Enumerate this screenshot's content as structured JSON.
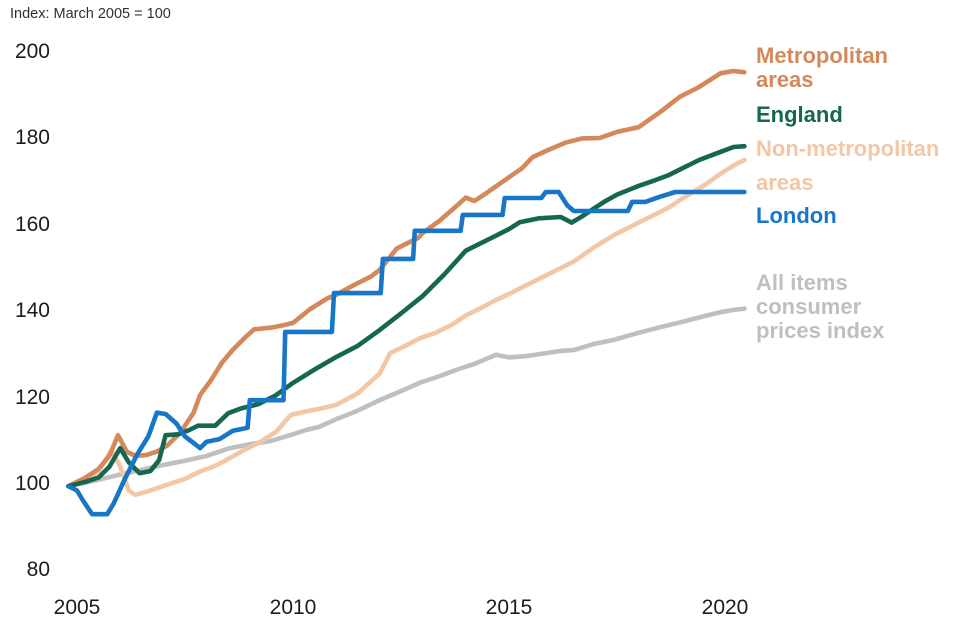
{
  "page": {
    "title": "Index: March 2005 = 100"
  },
  "chart_data": {
    "type": "line",
    "title": "Index: March 2005 = 100",
    "xlabel": "",
    "ylabel": "Index (March 2005 = 100)",
    "x_ticks": [
      2005,
      2010,
      2015,
      2020
    ],
    "y_ticks": [
      80,
      100,
      120,
      140,
      160,
      180,
      200
    ],
    "x_range": [
      2004.8,
      2021.4
    ],
    "y_range": [
      80,
      200
    ],
    "grid": "off",
    "legend_position": "right-of-line-ends",
    "series": [
      {
        "name": "All items consumer prices index",
        "color": "#bfbfbf",
        "label_lines": [
          "All items",
          "consumer",
          "prices index"
        ],
        "points": [
          [
            2004.8,
            99.5
          ],
          [
            2005.5,
            101
          ],
          [
            2006.0,
            102.2
          ],
          [
            2006.5,
            103.3
          ],
          [
            2007.0,
            104.4
          ],
          [
            2007.5,
            105.4
          ],
          [
            2008.0,
            106.5
          ],
          [
            2008.5,
            108.2
          ],
          [
            2009.0,
            109.2
          ],
          [
            2009.5,
            110.0
          ],
          [
            2010.0,
            111.5
          ],
          [
            2010.3,
            112.5
          ],
          [
            2010.6,
            113.2
          ],
          [
            2011.0,
            115.0
          ],
          [
            2011.5,
            117.0
          ],
          [
            2012.0,
            119.4
          ],
          [
            2012.5,
            121.5
          ],
          [
            2012.95,
            123.5
          ],
          [
            2013.4,
            125.0
          ],
          [
            2013.8,
            126.5
          ],
          [
            2014.2,
            127.8
          ],
          [
            2014.7,
            129.9
          ],
          [
            2015.0,
            129.3
          ],
          [
            2015.4,
            129.6
          ],
          [
            2015.8,
            130.2
          ],
          [
            2016.2,
            130.8
          ],
          [
            2016.5,
            131.0
          ],
          [
            2017.0,
            132.5
          ],
          [
            2017.4,
            133.3
          ],
          [
            2018.0,
            135.0
          ],
          [
            2018.5,
            136.3
          ],
          [
            2019.0,
            137.5
          ],
          [
            2019.5,
            138.8
          ],
          [
            2019.9,
            139.8
          ],
          [
            2020.2,
            140.3
          ],
          [
            2020.45,
            140.6
          ]
        ]
      },
      {
        "name": "Non-metropolitan areas",
        "color": "#f3c6a4",
        "label_lines": [
          "Non-metropolitan",
          "areas"
        ],
        "points": [
          [
            2004.8,
            99.5
          ],
          [
            2005.2,
            101.0
          ],
          [
            2005.5,
            103.0
          ],
          [
            2005.8,
            107.9
          ],
          [
            2006.0,
            104.0
          ],
          [
            2006.2,
            98.5
          ],
          [
            2006.35,
            97.5
          ],
          [
            2006.6,
            98.2
          ],
          [
            2006.9,
            99.2
          ],
          [
            2007.2,
            100.2
          ],
          [
            2007.5,
            101.2
          ],
          [
            2007.85,
            102.9
          ],
          [
            2008.2,
            104.2
          ],
          [
            2008.45,
            105.5
          ],
          [
            2008.8,
            107.5
          ],
          [
            2009.2,
            109.5
          ],
          [
            2009.6,
            112.0
          ],
          [
            2009.95,
            116.0
          ],
          [
            2010.3,
            116.8
          ],
          [
            2010.7,
            117.6
          ],
          [
            2011.0,
            118.3
          ],
          [
            2011.5,
            121.0
          ],
          [
            2012.0,
            125.5
          ],
          [
            2012.25,
            130.3
          ],
          [
            2012.6,
            132.0
          ],
          [
            2012.95,
            133.8
          ],
          [
            2013.3,
            135.0
          ],
          [
            2013.7,
            137.0
          ],
          [
            2014.0,
            139.0
          ],
          [
            2014.4,
            141.0
          ],
          [
            2014.7,
            142.6
          ],
          [
            2015.0,
            144.0
          ],
          [
            2015.5,
            146.5
          ],
          [
            2016.0,
            149.0
          ],
          [
            2016.5,
            151.5
          ],
          [
            2017.0,
            155.0
          ],
          [
            2017.5,
            158.0
          ],
          [
            2018.0,
            160.5
          ],
          [
            2018.4,
            162.5
          ],
          [
            2018.7,
            164.0
          ],
          [
            2019.0,
            166.0
          ],
          [
            2019.5,
            169.0
          ],
          [
            2020.0,
            172.5
          ],
          [
            2020.3,
            174.3
          ],
          [
            2020.45,
            175.0
          ]
        ]
      },
      {
        "name": "Metropolitan areas",
        "color": "#d5885a",
        "label_lines": [
          "Metropolitan",
          "areas"
        ],
        "points": [
          [
            2004.8,
            99.5
          ],
          [
            2005.2,
            101.5
          ],
          [
            2005.5,
            103.5
          ],
          [
            2005.75,
            106.5
          ],
          [
            2005.95,
            111.3
          ],
          [
            2006.15,
            107.5
          ],
          [
            2006.35,
            106.5
          ],
          [
            2006.6,
            106.7
          ],
          [
            2006.85,
            107.5
          ],
          [
            2007.1,
            109.0
          ],
          [
            2007.4,
            112.0
          ],
          [
            2007.7,
            116.5
          ],
          [
            2007.85,
            120.6
          ],
          [
            2008.1,
            124.0
          ],
          [
            2008.35,
            128.0
          ],
          [
            2008.6,
            131.0
          ],
          [
            2008.9,
            134.0
          ],
          [
            2009.1,
            135.8
          ],
          [
            2009.5,
            136.2
          ],
          [
            2009.8,
            136.8
          ],
          [
            2010.0,
            137.3
          ],
          [
            2010.4,
            140.5
          ],
          [
            2010.8,
            143.0
          ],
          [
            2011.0,
            143.8
          ],
          [
            2011.4,
            146.0
          ],
          [
            2011.8,
            148.0
          ],
          [
            2012.0,
            149.5
          ],
          [
            2012.2,
            152.0
          ],
          [
            2012.4,
            154.5
          ],
          [
            2012.6,
            155.5
          ],
          [
            2012.9,
            157.0
          ],
          [
            2013.0,
            158.1
          ],
          [
            2013.4,
            161.0
          ],
          [
            2013.8,
            164.5
          ],
          [
            2014.0,
            166.3
          ],
          [
            2014.2,
            165.5
          ],
          [
            2014.5,
            167.5
          ],
          [
            2015.0,
            171.0
          ],
          [
            2015.3,
            173.1
          ],
          [
            2015.55,
            175.7
          ],
          [
            2015.9,
            177.3
          ],
          [
            2016.3,
            179.0
          ],
          [
            2016.7,
            180.0
          ],
          [
            2017.1,
            180.1
          ],
          [
            2017.5,
            181.5
          ],
          [
            2018.0,
            182.6
          ],
          [
            2018.5,
            186.1
          ],
          [
            2018.95,
            189.6
          ],
          [
            2019.4,
            191.9
          ],
          [
            2019.9,
            195.1
          ],
          [
            2020.2,
            195.6
          ],
          [
            2020.45,
            195.3
          ]
        ]
      },
      {
        "name": "England",
        "color": "#15684f",
        "label_lines": [
          "England"
        ],
        "points": [
          [
            2004.8,
            99.5
          ],
          [
            2005.2,
            100.5
          ],
          [
            2005.5,
            101.5
          ],
          [
            2005.75,
            104.0
          ],
          [
            2006.0,
            108.3
          ],
          [
            2006.2,
            105.0
          ],
          [
            2006.45,
            102.5
          ],
          [
            2006.7,
            103.0
          ],
          [
            2006.9,
            105.5
          ],
          [
            2007.05,
            111.3
          ],
          [
            2007.35,
            111.5
          ],
          [
            2007.6,
            112.5
          ],
          [
            2007.8,
            113.5
          ],
          [
            2008.2,
            113.5
          ],
          [
            2008.5,
            116.4
          ],
          [
            2008.8,
            117.5
          ],
          [
            2009.2,
            118.5
          ],
          [
            2009.6,
            120.5
          ],
          [
            2010.0,
            123.4
          ],
          [
            2010.5,
            126.5
          ],
          [
            2011.0,
            129.4
          ],
          [
            2011.5,
            132.0
          ],
          [
            2012.0,
            135.6
          ],
          [
            2012.5,
            139.5
          ],
          [
            2013.0,
            143.5
          ],
          [
            2013.5,
            148.5
          ],
          [
            2014.0,
            154.0
          ],
          [
            2014.3,
            155.5
          ],
          [
            2014.6,
            157.0
          ],
          [
            2015.0,
            159.0
          ],
          [
            2015.25,
            160.6
          ],
          [
            2015.7,
            161.5
          ],
          [
            2016.2,
            161.8
          ],
          [
            2016.45,
            160.5
          ],
          [
            2016.7,
            162.0
          ],
          [
            2017.0,
            164.0
          ],
          [
            2017.2,
            165.3
          ],
          [
            2017.5,
            167.0
          ],
          [
            2018.0,
            169.0
          ],
          [
            2018.4,
            170.4
          ],
          [
            2018.7,
            171.5
          ],
          [
            2019.0,
            173.0
          ],
          [
            2019.4,
            175.0
          ],
          [
            2019.9,
            176.9
          ],
          [
            2020.2,
            178.0
          ],
          [
            2020.45,
            178.2
          ]
        ]
      },
      {
        "name": "London",
        "color": "#1876c8",
        "label_lines": [
          "London"
        ],
        "points": [
          [
            2004.8,
            99.5
          ],
          [
            2005.0,
            98.5
          ],
          [
            2005.15,
            96.0
          ],
          [
            2005.35,
            93.0
          ],
          [
            2005.7,
            93.0
          ],
          [
            2005.85,
            95.5
          ],
          [
            2006.1,
            101.0
          ],
          [
            2006.4,
            107.0
          ],
          [
            2006.65,
            111.0
          ],
          [
            2006.85,
            116.5
          ],
          [
            2007.05,
            116.2
          ],
          [
            2007.3,
            114.0
          ],
          [
            2007.5,
            111.0
          ],
          [
            2007.7,
            109.5
          ],
          [
            2007.85,
            108.3
          ],
          [
            2008.0,
            109.8
          ],
          [
            2008.3,
            110.4
          ],
          [
            2008.6,
            112.3
          ],
          [
            2008.95,
            113.0
          ],
          [
            2009.0,
            119.4
          ],
          [
            2009.78,
            119.4
          ],
          [
            2009.82,
            135.2
          ],
          [
            2010.9,
            135.2
          ],
          [
            2010.95,
            144.2
          ],
          [
            2012.03,
            144.2
          ],
          [
            2012.08,
            152.1
          ],
          [
            2012.78,
            152.1
          ],
          [
            2012.82,
            158.6
          ],
          [
            2013.88,
            158.6
          ],
          [
            2013.93,
            162.3
          ],
          [
            2014.85,
            162.3
          ],
          [
            2014.9,
            166.2
          ],
          [
            2015.75,
            166.2
          ],
          [
            2015.85,
            167.6
          ],
          [
            2016.15,
            167.6
          ],
          [
            2016.35,
            164.5
          ],
          [
            2016.5,
            163.2
          ],
          [
            2017.75,
            163.2
          ],
          [
            2017.85,
            165.3
          ],
          [
            2018.15,
            165.3
          ],
          [
            2018.5,
            166.5
          ],
          [
            2018.85,
            167.6
          ],
          [
            2020.45,
            167.6
          ]
        ]
      }
    ]
  }
}
